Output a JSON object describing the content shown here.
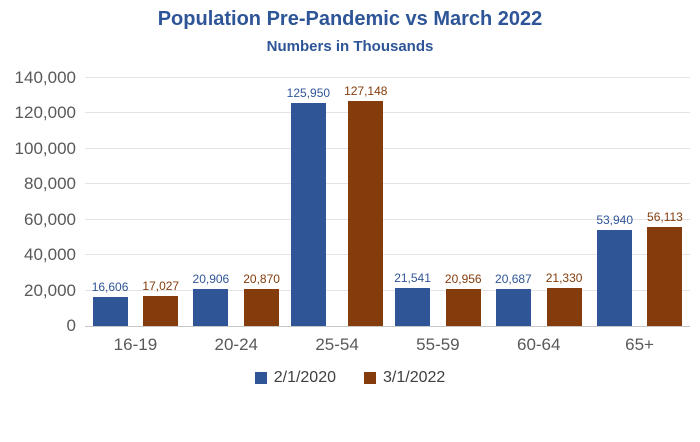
{
  "header": {
    "title": "Population Pre-Pandemic vs March 2022",
    "subtitle": "Numbers in Thousands"
  },
  "colors": {
    "title_blue": "#2E5597",
    "series_2020": "#2F5597",
    "series_2022": "#843C0C",
    "axis_text": "#595959",
    "gridline": "#E4E4E4"
  },
  "chart_data": {
    "type": "bar",
    "categories": [
      "16-19",
      "20-24",
      "25-54",
      "55-59",
      "60-64",
      "65+"
    ],
    "series": [
      {
        "name": "2/1/2020",
        "color": "#2F5597",
        "values": [
          16606,
          20906,
          125950,
          21541,
          20687,
          53940
        ],
        "labels": [
          "16,606",
          "20,906",
          "125,950",
          "21,541",
          "20,687",
          "53,940"
        ]
      },
      {
        "name": "3/1/2022",
        "color": "#843C0C",
        "values": [
          17027,
          20870,
          127148,
          20956,
          21330,
          56113
        ],
        "labels": [
          "17,027",
          "20,870",
          "127,148",
          "20,956",
          "21,330",
          "56,113"
        ]
      }
    ],
    "title": "Population Pre-Pandemic vs March 2022",
    "subtitle": "Numbers in Thousands",
    "xlabel": "",
    "ylabel": "",
    "ylim": [
      0,
      140000
    ],
    "ytick_step": 20000,
    "ytick_labels": [
      "0",
      "20,000",
      "40,000",
      "60,000",
      "80,000",
      "100,000",
      "120,000",
      "140,000"
    ],
    "grid": true,
    "legend_position": "bottom",
    "data_labels": true
  }
}
